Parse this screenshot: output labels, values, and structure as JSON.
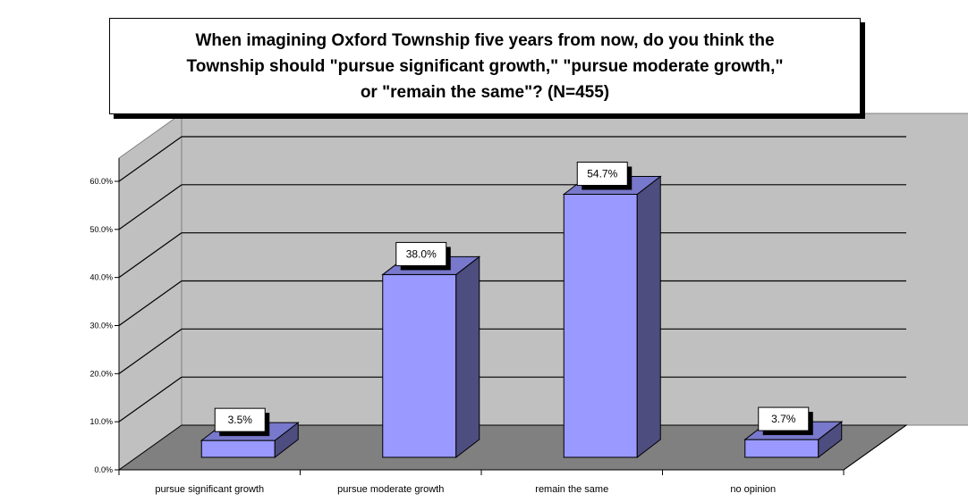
{
  "chart_data": {
    "type": "bar",
    "title": "When imagining Oxford Township five years from now, do you think the\nTownship should \"pursue significant growth,\"  \"pursue moderate growth,\"\nor \"remain the same\"? (N=455)",
    "categories": [
      "pursue significant growth",
      "pursue moderate growth",
      "remain the same",
      "no opinion"
    ],
    "values": [
      3.5,
      38.0,
      54.7,
      3.7
    ],
    "data_labels": [
      "3.5%",
      "38.0%",
      "54.7%",
      "3.7%"
    ],
    "y_tick_labels": [
      "0.0%",
      "10.0%",
      "20.0%",
      "30.0%",
      "40.0%",
      "50.0%",
      "60.0%"
    ],
    "ylim": [
      0,
      60
    ],
    "xlabel": "",
    "ylabel": "",
    "grid": true,
    "style": "3d-column",
    "colors": {
      "bar_front": "#9999ff",
      "bar_side": "#4d4d80",
      "bar_top": "#7878cc",
      "back_wall": "#c0c0c0",
      "side_wall": "#c0c0c0",
      "floor": "#808080"
    }
  }
}
